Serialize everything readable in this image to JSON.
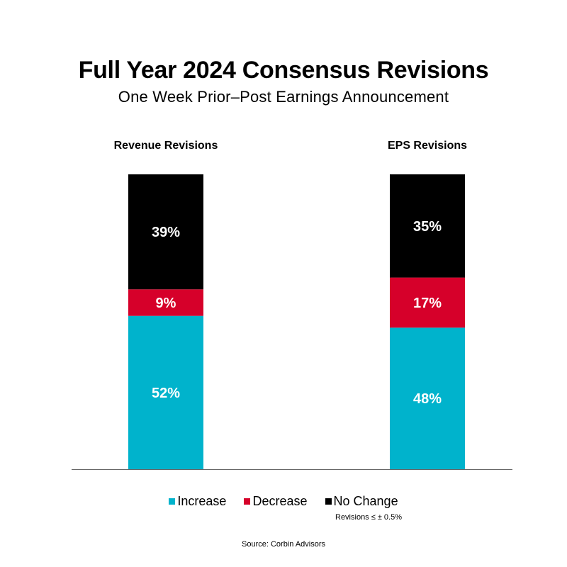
{
  "title": "Full Year 2024 Consensus Revisions",
  "subtitle": "One Week Prior–Post Earnings Announcement",
  "colors": {
    "increase": "#00B3CC",
    "decrease": "#D6002A",
    "no_change": "#000000",
    "axis": "#666666"
  },
  "chart_data": {
    "type": "bar",
    "stacked": true,
    "percent": true,
    "categories": [
      "Revenue Revisions",
      "EPS Revisions"
    ],
    "series": [
      {
        "name": "Increase",
        "color_key": "increase",
        "values": [
          52,
          48
        ],
        "labels": [
          "52%",
          "48%"
        ]
      },
      {
        "name": "Decrease",
        "color_key": "decrease",
        "values": [
          9,
          17
        ],
        "labels": [
          "9%",
          "17%"
        ]
      },
      {
        "name": "No Change",
        "color_key": "no_change",
        "values": [
          39,
          35
        ],
        "labels": [
          "39%",
          "35%"
        ]
      }
    ],
    "ylim": [
      0,
      100
    ]
  },
  "legend": {
    "items": [
      {
        "label": "Increase",
        "color_key": "increase"
      },
      {
        "label": "Decrease",
        "color_key": "decrease"
      },
      {
        "label": "No Change",
        "color_key": "no_change"
      }
    ],
    "note": "Revisions ≤ ± 0.5%"
  },
  "source": "Source: Corbin Advisors"
}
